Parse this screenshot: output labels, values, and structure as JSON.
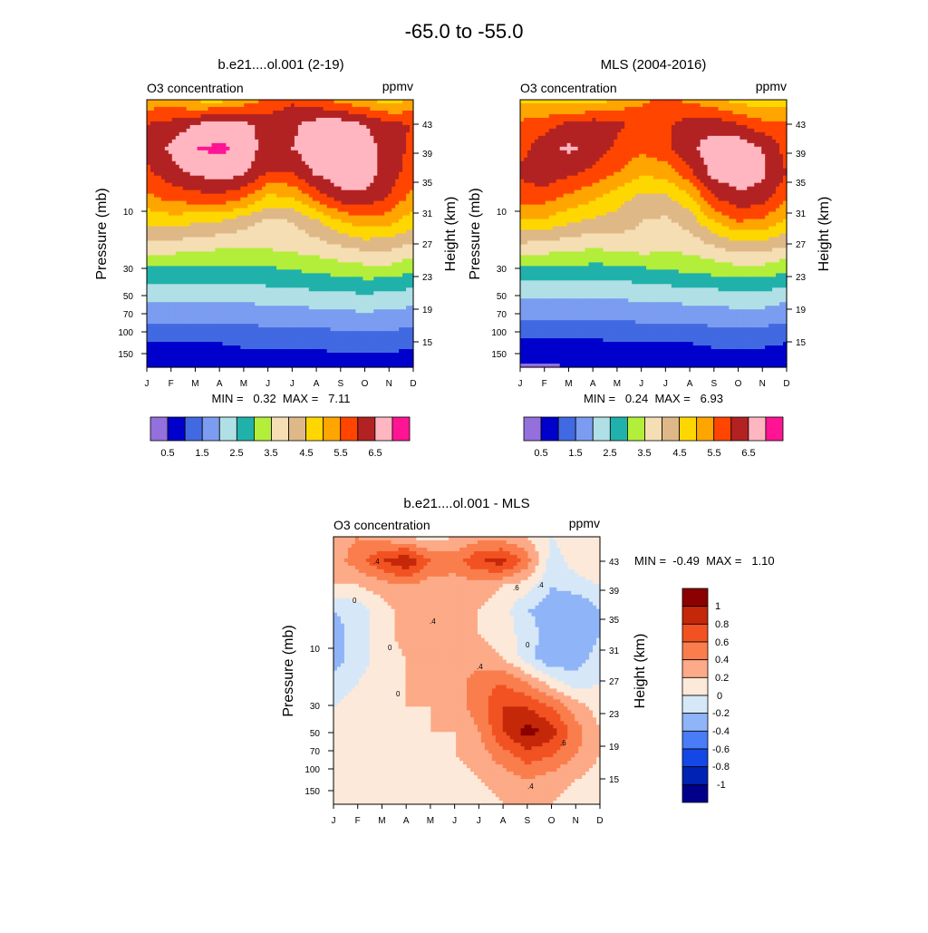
{
  "page_title": "-65.0 to -55.0",
  "palette": {
    "ozone": [
      "#9370db",
      "#0000cd",
      "#4169e1",
      "#7b9cf0",
      "#b0e0e6",
      "#20b2aa",
      "#b3ee3a",
      "#f5deb3",
      "#deb887",
      "#ffd700",
      "#ffa500",
      "#ff4500",
      "#b22222",
      "#ffb6c1",
      "#ff1493"
    ],
    "diff": [
      "#00008b",
      "#0022b4",
      "#1447e6",
      "#4a7cf5",
      "#8fb4f7",
      "#d6e8f8",
      "#fde9d9",
      "#fcaa87",
      "#fa7e4d",
      "#f25222",
      "#c42808",
      "#8b0000"
    ]
  },
  "chart_data": [
    {
      "type": "heatmap",
      "title": "b.e21....ol.001 (2-19)",
      "left_label": "O3 concentration",
      "right_label": "ppmv",
      "ylabel": "Pressure (mb)",
      "ylabel_right": "Height (km)",
      "x": [
        "J",
        "F",
        "M",
        "A",
        "M",
        "J",
        "J",
        "A",
        "S",
        "O",
        "N",
        "D"
      ],
      "pressure_ticks": [
        "10",
        "30",
        "50",
        "70",
        "100",
        "150"
      ],
      "height_ticks": [
        "43",
        "39",
        "35",
        "31",
        "27",
        "23",
        "19",
        "15"
      ],
      "stats": "MIN =   0.32  MAX =   7.11",
      "colorbar_labels": [
        "0.5",
        "1.5",
        "2.5",
        "3.5",
        "4.5",
        "5.5",
        "6.5"
      ],
      "levels": [
        0.5,
        1,
        1.5,
        2,
        2.5,
        3,
        3.5,
        4,
        4.5,
        5,
        5.5,
        6,
        6.5,
        7
      ],
      "values": [
        [
          5.2,
          5.1,
          4.9,
          4.8,
          5.2,
          5.6,
          5.9,
          5.7,
          5.3,
          5.0,
          4.8,
          5.0
        ],
        [
          6.0,
          6.2,
          6.5,
          6.7,
          6.6,
          6.3,
          6.4,
          6.7,
          6.8,
          6.5,
          6.1,
          6.0
        ],
        [
          6.1,
          6.6,
          7.0,
          7.1,
          6.9,
          6.2,
          6.5,
          6.9,
          7.0,
          6.8,
          6.2,
          5.9
        ],
        [
          5.9,
          6.3,
          6.6,
          6.8,
          6.6,
          6.0,
          6.0,
          6.6,
          6.9,
          6.8,
          6.2,
          5.8
        ],
        [
          5.4,
          5.7,
          5.8,
          5.9,
          5.6,
          4.9,
          5.0,
          5.7,
          6.3,
          6.4,
          6.0,
          5.3
        ],
        [
          4.6,
          4.7,
          4.6,
          4.5,
          4.2,
          3.9,
          4.0,
          4.4,
          5.0,
          5.3,
          5.2,
          4.7
        ],
        [
          3.8,
          3.8,
          3.7,
          3.6,
          3.6,
          3.6,
          3.7,
          3.8,
          4.0,
          4.2,
          4.2,
          3.9
        ],
        [
          2.9,
          2.9,
          2.9,
          2.9,
          2.9,
          2.9,
          3.0,
          3.1,
          3.2,
          3.3,
          3.3,
          3.1
        ],
        [
          2.2,
          2.2,
          2.2,
          2.2,
          2.2,
          2.3,
          2.3,
          2.4,
          2.4,
          2.5,
          2.4,
          2.3
        ],
        [
          1.6,
          1.6,
          1.6,
          1.6,
          1.6,
          1.7,
          1.7,
          1.7,
          1.8,
          1.8,
          1.8,
          1.7
        ],
        [
          1.0,
          1.0,
          1.0,
          1.0,
          1.1,
          1.1,
          1.1,
          1.1,
          1.2,
          1.2,
          1.2,
          1.1
        ],
        [
          0.5,
          0.6,
          0.6,
          0.6,
          0.6,
          0.6,
          0.6,
          0.7,
          0.7,
          0.7,
          0.7,
          0.6
        ]
      ]
    },
    {
      "type": "heatmap",
      "title": "MLS (2004-2016)",
      "left_label": "O3 concentration",
      "right_label": "ppmv",
      "ylabel": "Pressure (mb)",
      "ylabel_right": "Height (km)",
      "x": [
        "J",
        "F",
        "M",
        "A",
        "M",
        "J",
        "J",
        "A",
        "S",
        "O",
        "N",
        "D"
      ],
      "pressure_ticks": [
        "10",
        "30",
        "50",
        "70",
        "100",
        "150"
      ],
      "height_ticks": [
        "43",
        "39",
        "35",
        "31",
        "27",
        "23",
        "19",
        "15"
      ],
      "stats": "MIN =   0.24  MAX =   6.93",
      "colorbar_labels": [
        "0.5",
        "1.5",
        "2.5",
        "3.5",
        "4.5",
        "5.5",
        "6.5"
      ],
      "levels": [
        0.5,
        1,
        1.5,
        2,
        2.5,
        3,
        3.5,
        4,
        4.5,
        5,
        5.5,
        6,
        6.5,
        7
      ],
      "values": [
        [
          4.9,
          4.8,
          4.7,
          4.7,
          5.1,
          5.4,
          5.6,
          5.4,
          5.1,
          4.8,
          4.6,
          4.8
        ],
        [
          5.6,
          5.8,
          6.1,
          6.3,
          6.1,
          5.8,
          5.9,
          6.2,
          6.3,
          6.0,
          5.7,
          5.6
        ],
        [
          5.8,
          6.3,
          6.6,
          6.3,
          5.9,
          5.6,
          5.9,
          6.4,
          6.8,
          6.9,
          6.5,
          5.8
        ],
        [
          6.1,
          6.4,
          6.1,
          5.9,
          5.5,
          5.1,
          5.2,
          5.9,
          6.7,
          6.8,
          6.6,
          6.0
        ],
        [
          5.7,
          5.7,
          5.4,
          5.1,
          4.7,
          4.4,
          4.4,
          4.9,
          6.0,
          6.4,
          6.3,
          5.6
        ],
        [
          4.9,
          4.9,
          4.6,
          4.4,
          4.3,
          4.0,
          3.9,
          4.2,
          5.0,
          5.5,
          5.4,
          4.9
        ],
        [
          3.9,
          3.8,
          3.7,
          3.6,
          3.7,
          3.8,
          3.7,
          3.7,
          4.0,
          4.3,
          4.3,
          4.0
        ],
        [
          2.9,
          2.9,
          2.9,
          2.8,
          2.8,
          2.9,
          3.0,
          3.1,
          3.2,
          3.3,
          3.3,
          3.1
        ],
        [
          2.1,
          2.1,
          2.1,
          2.1,
          2.1,
          2.2,
          2.2,
          2.3,
          2.3,
          2.4,
          2.4,
          2.2
        ],
        [
          1.5,
          1.5,
          1.5,
          1.5,
          1.5,
          1.6,
          1.6,
          1.6,
          1.7,
          1.7,
          1.7,
          1.6
        ],
        [
          0.9,
          0.9,
          0.9,
          0.9,
          1.0,
          1.0,
          1.0,
          1.0,
          1.1,
          1.1,
          1.1,
          1.0
        ],
        [
          0.4,
          0.4,
          0.5,
          0.5,
          0.5,
          0.5,
          0.5,
          0.5,
          0.6,
          0.6,
          0.6,
          0.5
        ]
      ]
    },
    {
      "type": "heatmap",
      "title": "b.e21....ol.001 - MLS",
      "left_label": "O3 concentration",
      "right_label": "ppmv",
      "ylabel": "Pressure (mb)",
      "ylabel_right": "Height (km)",
      "x": [
        "J",
        "F",
        "M",
        "A",
        "M",
        "J",
        "J",
        "A",
        "S",
        "O",
        "N",
        "D"
      ],
      "pressure_ticks": [
        "10",
        "30",
        "50",
        "70",
        "100",
        "150"
      ],
      "height_ticks": [
        "43",
        "39",
        "35",
        "31",
        "27",
        "23",
        "19",
        "15"
      ],
      "stats": "MIN =  -0.49  MAX =   1.10",
      "colorbar_labels": [
        "1",
        "0.8",
        "0.6",
        "0.4",
        "0.2",
        "0",
        "-0.2",
        "-0.4",
        "-0.6",
        "-0.8",
        "-1"
      ],
      "levels": [
        -1,
        -0.8,
        -0.6,
        -0.4,
        -0.2,
        0,
        0.2,
        0.4,
        0.6,
        0.8,
        1
      ],
      "contour_labels": [
        "0",
        "0",
        "0",
        "0",
        ".4",
        ".4",
        ".4",
        ".4",
        ".6",
        ".6",
        ".4"
      ],
      "values": [
        [
          0.3,
          0.4,
          0.3,
          0.2,
          0.1,
          0.2,
          0.3,
          0.3,
          0.2,
          0.0,
          0.1,
          0.2
        ],
        [
          0.3,
          0.5,
          0.8,
          1.0,
          0.6,
          0.5,
          0.8,
          0.9,
          0.5,
          -0.1,
          0.1,
          0.2
        ],
        [
          0.2,
          0.2,
          0.3,
          0.4,
          0.3,
          0.3,
          0.3,
          0.2,
          0.1,
          -0.2,
          -0.1,
          0.0
        ],
        [
          -0.2,
          -0.1,
          0.1,
          0.3,
          0.4,
          0.3,
          0.2,
          0.1,
          -0.2,
          -0.3,
          -0.4,
          -0.2
        ],
        [
          -0.3,
          -0.1,
          0.1,
          0.3,
          0.4,
          0.3,
          0.2,
          0.1,
          -0.1,
          -0.3,
          -0.4,
          -0.2
        ],
        [
          -0.3,
          -0.1,
          0.1,
          0.2,
          0.3,
          0.3,
          0.3,
          0.2,
          -0.1,
          -0.4,
          -0.3,
          -0.1
        ],
        [
          -0.1,
          0.0,
          0.1,
          0.2,
          0.2,
          0.3,
          0.5,
          0.6,
          0.4,
          0.1,
          -0.1,
          0.0
        ],
        [
          0.0,
          0.1,
          0.1,
          0.2,
          0.2,
          0.3,
          0.5,
          0.8,
          0.8,
          0.6,
          0.3,
          0.1
        ],
        [
          0.1,
          0.1,
          0.1,
          0.1,
          0.2,
          0.2,
          0.4,
          0.8,
          1.1,
          0.9,
          0.5,
          0.2
        ],
        [
          0.1,
          0.1,
          0.1,
          0.1,
          0.1,
          0.2,
          0.3,
          0.5,
          0.7,
          0.6,
          0.4,
          0.2
        ],
        [
          0.2,
          0.1,
          0.1,
          0.1,
          0.1,
          0.1,
          0.2,
          0.3,
          0.4,
          0.3,
          0.2,
          0.1
        ],
        [
          0.1,
          0.1,
          0.1,
          0.1,
          0.1,
          0.1,
          0.1,
          0.2,
          0.2,
          0.2,
          0.1,
          0.1
        ]
      ]
    }
  ]
}
